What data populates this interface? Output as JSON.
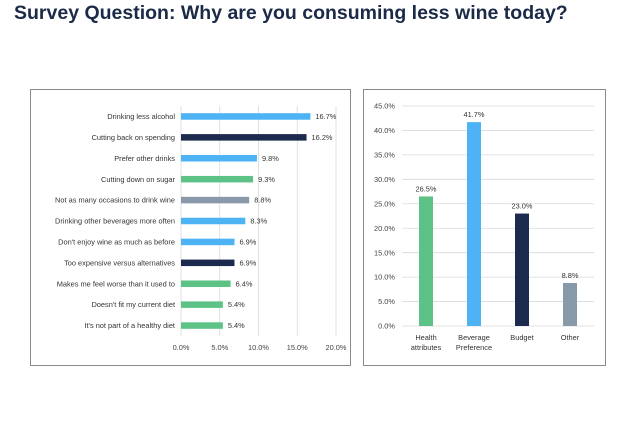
{
  "page": {
    "title": "Survey Question: Why are you consuming less wine today?"
  },
  "colors": {
    "light_blue": "#4db3f5",
    "navy": "#1b2a4d",
    "green": "#5cc285",
    "gray": "#8899aa",
    "grid": "#d9d9d9"
  },
  "chart_data": [
    {
      "type": "bar",
      "orientation": "horizontal",
      "title": "",
      "xlabel": "",
      "ylabel": "",
      "xlim": [
        0,
        20
      ],
      "xticks": [
        "0.0%",
        "5.0%",
        "10.0%",
        "15.0%",
        "20.0%"
      ],
      "categories": [
        "Drinking less alcohol",
        "Cutting back on spending",
        "Prefer other drinks",
        "Cutting down on sugar",
        "Not as many occasions to drink wine",
        "Drinking other beverages more often",
        "Don't enjoy wine as much as before",
        "Too expensive versus alternatives",
        "Makes me feel worse than it used to",
        "Doesn't fit my current diet",
        "It's not part of a healthy diet"
      ],
      "values": [
        16.7,
        16.2,
        9.8,
        9.3,
        8.8,
        8.3,
        6.9,
        6.9,
        6.4,
        5.4,
        5.4
      ],
      "labels": [
        "16.7%",
        "16.2%",
        "9.8%",
        "9.3%",
        "8.8%",
        "8.3%",
        "6.9%",
        "6.9%",
        "6.4%",
        "5.4%",
        "5.4%"
      ],
      "bar_colors": [
        "light_blue",
        "navy",
        "light_blue",
        "green",
        "gray",
        "light_blue",
        "light_blue",
        "navy",
        "green",
        "green",
        "green"
      ],
      "grid": true
    },
    {
      "type": "bar",
      "orientation": "vertical",
      "title": "",
      "xlabel": "",
      "ylabel": "",
      "ylim": [
        0,
        45
      ],
      "yticks": [
        "0.0%",
        "5.0%",
        "10.0%",
        "15.0%",
        "20.0%",
        "25.0%",
        "30.0%",
        "35.0%",
        "40.0%",
        "45.0%"
      ],
      "categories": [
        [
          "Health",
          "attributes"
        ],
        [
          "Beverage",
          "Preference"
        ],
        [
          "Budget"
        ],
        [
          "Other"
        ]
      ],
      "values": [
        26.5,
        41.7,
        23.0,
        8.8
      ],
      "labels": [
        "26.5%",
        "41.7%",
        "23.0%",
        "8.8%"
      ],
      "bar_colors": [
        "green",
        "light_blue",
        "navy",
        "gray"
      ],
      "grid": true
    }
  ]
}
